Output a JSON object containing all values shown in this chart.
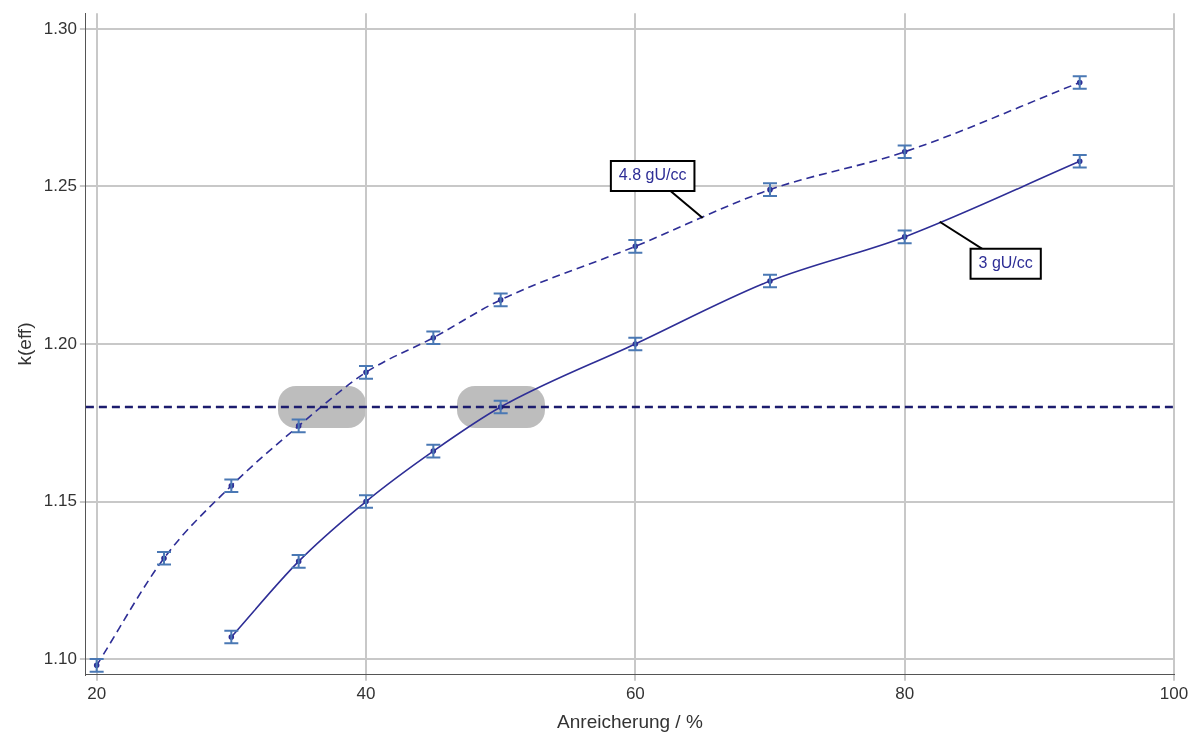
{
  "chart_data": {
    "type": "line",
    "xlabel": "Anreicherung / %",
    "ylabel": "k(eff)",
    "xlim": [
      19.2,
      100
    ],
    "xticks": [
      20,
      40,
      60,
      80,
      100
    ],
    "ylim": [
      1.095,
      1.305
    ],
    "yticks": [
      {
        "value": 1.1,
        "label": "1.10"
      },
      {
        "value": 1.15,
        "label": "1.15"
      },
      {
        "value": 1.2,
        "label": "1.20"
      },
      {
        "value": 1.25,
        "label": "1.25"
      },
      {
        "value": 1.3,
        "label": "1.30"
      }
    ],
    "grid": true,
    "legend": false,
    "marker": "circle",
    "ref_lines": [
      {
        "axis": "y",
        "value": 1.18,
        "color": "#1c1c6e",
        "line_style": "dashed"
      }
    ],
    "series": [
      {
        "name": "4.8 gU/cc",
        "color": "#2e2e96",
        "line_style": "dashed",
        "x": [
          20,
          25,
          30,
          35,
          40,
          45,
          50,
          60,
          70,
          80,
          93
        ],
        "values": [
          1.098,
          1.132,
          1.155,
          1.174,
          1.191,
          1.202,
          1.214,
          1.231,
          1.249,
          1.261,
          1.283
        ],
        "errors": [
          0.002,
          0.002,
          0.002,
          0.002,
          0.002,
          0.002,
          0.002,
          0.002,
          0.002,
          0.002,
          0.002
        ]
      },
      {
        "name": "3 gU/cc",
        "color": "#2e2e96",
        "line_style": "solid",
        "x": [
          30,
          35,
          40,
          45,
          50,
          60,
          70,
          80,
          93
        ],
        "values": [
          1.107,
          1.131,
          1.15,
          1.166,
          1.18,
          1.2,
          1.22,
          1.234,
          1.258
        ],
        "errors": [
          0.002,
          0.002,
          0.002,
          0.002,
          0.002,
          0.002,
          0.002,
          0.002,
          0.002
        ]
      }
    ]
  }
}
